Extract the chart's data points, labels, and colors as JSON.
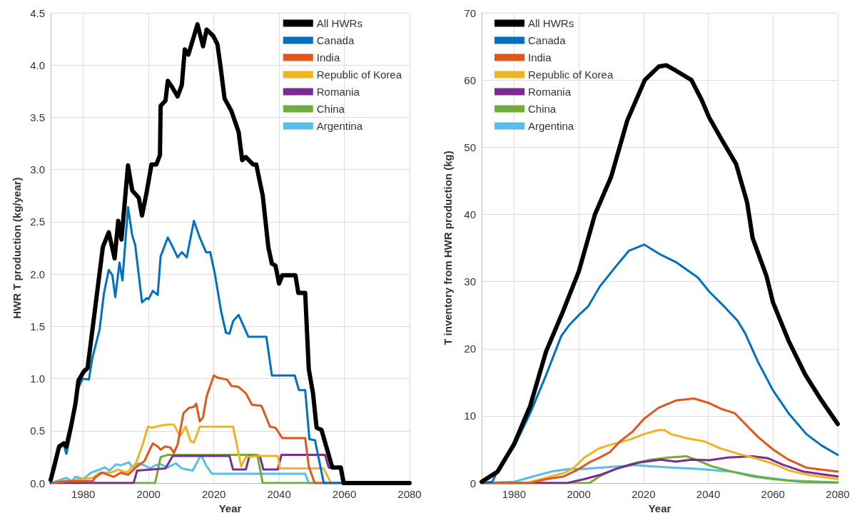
{
  "chart_data": [
    {
      "type": "line",
      "xlabel": "Year",
      "ylabel": "HWR T production (kg/year)",
      "xlim": [
        1970,
        2080
      ],
      "xticks": [
        1980,
        2000,
        2020,
        2040,
        2060,
        2080
      ],
      "ylim": [
        0,
        4.5
      ],
      "yticks": [
        {
          "value": 0,
          "label": "0.0"
        },
        0.5,
        {
          "value": 1,
          "label": "1.0"
        },
        1.5,
        {
          "value": 2,
          "label": "2.0"
        },
        2.5,
        {
          "value": 3,
          "label": "3.0"
        },
        3.5,
        {
          "value": 4,
          "label": "4.0"
        },
        4.5
      ],
      "grid": true,
      "legend": "top right",
      "marker": "none",
      "line_style": "solid",
      "series": [
        {
          "name": "All HWRs",
          "color": "#000000",
          "x": [
            1970,
            1971,
            1972.6,
            1974,
            1974.8,
            1976.3,
            1977.6,
            1978.5,
            1980.2,
            1981.3,
            1982,
            1986,
            1987.8,
            1989.6,
            1990.7,
            1991.7,
            1993.7,
            1995,
            1997,
            1998,
            1999.4,
            2000.9,
            2002.4,
            2003.5,
            2003.7,
            2005.2,
            2005.9,
            2007.4,
            2008.9,
            2010.2,
            2011.1,
            2012.2,
            2015,
            2016.7,
            2017.8,
            2019.8,
            2021.1,
            2022,
            2023.3,
            2025.4,
            2027.6,
            2028.7,
            2029.8,
            2032,
            2033,
            2035,
            2036.7,
            2037.8,
            2038.9,
            2040,
            2041,
            2045,
            2045.9,
            2048,
            2049.1,
            2050.4,
            2051.5,
            2053,
            2056.3,
            2058.9,
            2059.8,
            2080
          ],
          "values": [
            0.03,
            0.15,
            0.35,
            0.38,
            0.35,
            0.55,
            0.76,
            0.98,
            1.07,
            1.1,
            1.27,
            2.26,
            2.4,
            2.15,
            2.51,
            2.33,
            3.04,
            2.8,
            2.73,
            2.56,
            2.78,
            3.05,
            3.05,
            3.14,
            3.61,
            3.66,
            3.85,
            3.78,
            3.7,
            3.81,
            4.15,
            4.1,
            4.39,
            4.18,
            4.34,
            4.28,
            4.2,
            4.0,
            3.68,
            3.56,
            3.36,
            3.09,
            3.12,
            3.05,
            3.05,
            2.75,
            2.26,
            2.1,
            2.08,
            1.91,
            1.99,
            1.99,
            1.82,
            1.82,
            1.09,
            0.86,
            0.53,
            0.51,
            0.15,
            0.15,
            0,
            0
          ]
        },
        {
          "name": "Canada",
          "color": "#0070c0",
          "x": [
            1970,
            1972.6,
            1974,
            1974.8,
            1976.3,
            1978,
            1978.5,
            1979.8,
            1981.7,
            1982.8,
            1985,
            1986.3,
            1987.8,
            1988.9,
            1989.8,
            1991.1,
            1992,
            1993.7,
            1995,
            1995.9,
            1998,
            1999.4,
            2000,
            2001.3,
            2002.8,
            2003.7,
            2005.9,
            2007.4,
            2008.9,
            2010.2,
            2011.7,
            2013.9,
            2015.7,
            2017.6,
            2018.9,
            2020.4,
            2022.2,
            2023.7,
            2024.8,
            2025.9,
            2027.6,
            2030.6,
            2036.1,
            2037.8,
            2044.8,
            2046.1,
            2048,
            2049.3,
            2051,
            2053.7,
            2080
          ],
          "values": [
            0,
            0.33,
            0.37,
            0.28,
            0.5,
            0.85,
            0.91,
            1.0,
            0.99,
            1.2,
            1.47,
            1.81,
            2.04,
            1.99,
            1.78,
            2.11,
            1.94,
            2.64,
            2.37,
            2.28,
            1.73,
            1.77,
            1.76,
            1.84,
            1.8,
            2.17,
            2.35,
            2.26,
            2.16,
            2.21,
            2.16,
            2.51,
            2.35,
            2.21,
            2.21,
            1.99,
            1.65,
            1.44,
            1.43,
            1.55,
            1.61,
            1.4,
            1.4,
            1.03,
            1.03,
            0.89,
            0.89,
            0.42,
            0.41,
            0,
            0
          ]
        },
        {
          "name": "India",
          "color": "#e0561b",
          "x": [
            1970,
            1975,
            1980,
            1983,
            1983.5,
            1985.7,
            1989.3,
            1991.5,
            1993.7,
            1996.1,
            1998.7,
            2001.3,
            2002.8,
            2003.7,
            2005,
            2006.7,
            2007.8,
            2008.9,
            2010.7,
            2012.4,
            2013.9,
            2014.6,
            2015.7,
            2016.7,
            2017.8,
            2020,
            2021.1,
            2024.1,
            2025.4,
            2027.6,
            2029.8,
            2031.7,
            2034.6,
            2037.2,
            2038.9,
            2041,
            2048,
            2049.1,
            2050.9,
            2080
          ],
          "values": [
            0,
            0.02,
            0.02,
            0.02,
            0.05,
            0.1,
            0.06,
            0.1,
            0.08,
            0.15,
            0.21,
            0.38,
            0.35,
            0.32,
            0.35,
            0.34,
            0.29,
            0.37,
            0.67,
            0.72,
            0.73,
            0.76,
            0.59,
            0.63,
            0.83,
            1.03,
            1.01,
            0.99,
            0.93,
            0.92,
            0.86,
            0.75,
            0.74,
            0.54,
            0.53,
            0.43,
            0.43,
            0.16,
            0,
            0
          ]
        },
        {
          "name": "Republic of Korea",
          "color": "#f0b323",
          "x": [
            1970,
            1983,
            1985,
            1988.5,
            1990.7,
            1993.3,
            1996.1,
            1998,
            1999.8,
            2001,
            2003.7,
            2005.9,
            2007.8,
            2009.6,
            2011.4,
            2012.9,
            2013.9,
            2015.7,
            2025.9,
            2028.4,
            2029.8,
            2033.9,
            2039.6,
            2040.3,
            2053.7,
            2055.9,
            2080
          ],
          "values": [
            0,
            0.05,
            0.1,
            0.1,
            0.13,
            0.1,
            0.19,
            0.35,
            0.54,
            0.53,
            0.55,
            0.56,
            0.56,
            0.45,
            0.54,
            0.4,
            0.39,
            0.54,
            0.54,
            0.16,
            0.25,
            0.26,
            0.26,
            0.14,
            0.14,
            0,
            0
          ]
        },
        {
          "name": "Romania",
          "color": "#7b2c93",
          "x": [
            1970,
            1995.4,
            1996.5,
            2005.2,
            2007.4,
            2024.8,
            2025.9,
            2029.8,
            2030.9,
            2034.1,
            2035.2,
            2039.6,
            2040.7,
            2054.1,
            2055.2,
            2059.1,
            2060.2,
            2080
          ],
          "values": [
            0,
            0,
            0.12,
            0.14,
            0.26,
            0.26,
            0.13,
            0.13,
            0.26,
            0.26,
            0.13,
            0.13,
            0.27,
            0.27,
            0.15,
            0.15,
            0,
            0
          ]
        },
        {
          "name": "China",
          "color": "#72ad3c",
          "x": [
            1970,
            2002,
            2003.7,
            2005.9,
            2033.3,
            2035,
            2080
          ],
          "values": [
            0,
            0,
            0.25,
            0.27,
            0.27,
            0,
            0
          ]
        },
        {
          "name": "Argentina",
          "color": "#57bde9",
          "x": [
            1970,
            1974.8,
            1976.5,
            1977.6,
            1980,
            1982.4,
            1985,
            1986.6,
            1988,
            1990,
            1991.5,
            1994,
            1995,
            1997,
            1998.7,
            2000.5,
            2002,
            2003.7,
            2005.9,
            2008.4,
            2010.2,
            2013.5,
            2016.1,
            2017.6,
            2019.4,
            2048,
            2049.1,
            2080
          ],
          "values": [
            0,
            0.05,
            0.02,
            0.06,
            0.04,
            0.1,
            0.13,
            0.15,
            0.12,
            0.18,
            0.17,
            0.2,
            0.15,
            0.19,
            0.17,
            0.14,
            0.17,
            0.18,
            0.15,
            0.19,
            0.14,
            0.12,
            0.27,
            0.17,
            0.09,
            0.09,
            0,
            0
          ]
        }
      ]
    },
    {
      "type": "line",
      "xlabel": "Year",
      "ylabel": "T inventory from HWR production (kg)",
      "xlim": [
        1970,
        2080
      ],
      "xticks": [
        1980,
        2000,
        2020,
        2040,
        2060,
        2080
      ],
      "ylim": [
        0,
        70
      ],
      "yticks": [
        0,
        10,
        20,
        30,
        40,
        50,
        60,
        70
      ],
      "grid": true,
      "legend": "top left",
      "marker": "none",
      "line_style": "solid",
      "series": [
        {
          "name": "All HWRs",
          "color": "#000000",
          "x": [
            1970,
            1974.9,
            1980,
            1985,
            1989.9,
            1995,
            2000,
            2005,
            2010,
            2015,
            2020.4,
            2024.7,
            2027,
            2030,
            2034.8,
            2038,
            2040.3,
            2044.2,
            2048.6,
            2052,
            2053.7,
            2058,
            2060,
            2064.8,
            2069.9,
            2075,
            2080
          ],
          "values": [
            0.2,
            1.7,
            5.8,
            11.5,
            19.6,
            25.4,
            31.5,
            40,
            45.6,
            54,
            60,
            62,
            62.2,
            61.4,
            60,
            57,
            54.4,
            51.1,
            47.5,
            41.8,
            36.5,
            30.8,
            26.9,
            21.2,
            16.2,
            12.3,
            8.8
          ]
        },
        {
          "name": "Canada",
          "color": "#0070c0",
          "x": [
            1970,
            1973.3,
            1975,
            1980,
            1985,
            1990,
            1994.6,
            1997,
            2000,
            2002.9,
            2006.4,
            2011.2,
            2015.5,
            2020.2,
            2025.3,
            2030,
            2036.8,
            2040.3,
            2045.1,
            2049,
            2051.4,
            2055.3,
            2060,
            2064.8,
            2070.3,
            2075,
            2080
          ],
          "values": [
            0,
            0.2,
            1.9,
            5.4,
            10.4,
            16.2,
            21.9,
            23.5,
            25,
            26.3,
            29.2,
            32.1,
            34.6,
            35.5,
            34,
            32.9,
            30.6,
            28.5,
            26.2,
            24.2,
            22.3,
            18.1,
            13.8,
            10.4,
            7.3,
            5.6,
            4.2
          ]
        },
        {
          "name": "India",
          "color": "#e0561b",
          "x": [
            1970,
            1985,
            1990,
            1995.4,
            1999.3,
            2003.3,
            2006.4,
            2009.6,
            2012.7,
            2016.7,
            2020.2,
            2024.6,
            2030,
            2035.6,
            2040.3,
            2044.3,
            2048.2,
            2051.4,
            2055.3,
            2060,
            2064.8,
            2070.3,
            2080
          ],
          "values": [
            0,
            0,
            0.6,
            1,
            1.9,
            3.1,
            3.8,
            4.6,
            6.2,
            7.7,
            9.6,
            11.2,
            12.3,
            12.6,
            11.9,
            11,
            10.4,
            8.8,
            6.9,
            5,
            3.5,
            2.3,
            1.7
          ]
        },
        {
          "name": "Republic of Korea",
          "color": "#f0b323",
          "x": [
            1970,
            1983.5,
            1990,
            1995.4,
            1998.5,
            2001.7,
            2006.4,
            2011.9,
            2015.9,
            2020.2,
            2024.6,
            2026.5,
            2028.5,
            2033.2,
            2038.8,
            2043.5,
            2049,
            2054.5,
            2060,
            2064.8,
            2071,
            2080
          ],
          "values": [
            0,
            0,
            0.8,
            1.5,
            2.3,
            3.8,
            5.2,
            6,
            6.5,
            7.3,
            7.9,
            7.9,
            7.3,
            6.7,
            6.2,
            5.2,
            4.4,
            3.7,
            2.9,
            1.9,
            1.2,
            0.6
          ]
        },
        {
          "name": "Romania",
          "color": "#7b2c93",
          "x": [
            1970,
            1996.2,
            2001.7,
            2006.4,
            2012.7,
            2019,
            2025.3,
            2030,
            2034.8,
            2040.3,
            2045.9,
            2053.7,
            2058.5,
            2063.2,
            2069.5,
            2080
          ],
          "values": [
            0,
            0,
            0.6,
            1.2,
            2.3,
            3.1,
            3.5,
            3.2,
            3.5,
            3.4,
            3.8,
            4,
            3.7,
            2.7,
            1.7,
            1
          ]
        },
        {
          "name": "China",
          "color": "#72ad3c",
          "x": [
            1970,
            2003.3,
            2006.4,
            2011.2,
            2016.7,
            2022.2,
            2027.7,
            2033.2,
            2037.2,
            2041.1,
            2047.4,
            2053.7,
            2060,
            2068.7,
            2080
          ],
          "values": [
            0,
            0,
            1,
            2.1,
            2.9,
            3.5,
            3.8,
            4,
            3.3,
            2.5,
            1.7,
            1,
            0.6,
            0.2,
            0.1
          ]
        },
        {
          "name": "Argentina",
          "color": "#57bde9",
          "x": [
            1970,
            1980,
            1985.9,
            1991.4,
            1997,
            2001.7,
            2006.4,
            2012.7,
            2017.5,
            2022.2,
            2029.3,
            2037.2,
            2047.4,
            2055.3,
            2064.8,
            2080
          ],
          "values": [
            0,
            0.2,
            1,
            1.7,
            2.1,
            2.1,
            2.3,
            2.5,
            2.7,
            2.5,
            2.3,
            2.1,
            1.7,
            1,
            0.4,
            0.1
          ]
        }
      ]
    }
  ]
}
